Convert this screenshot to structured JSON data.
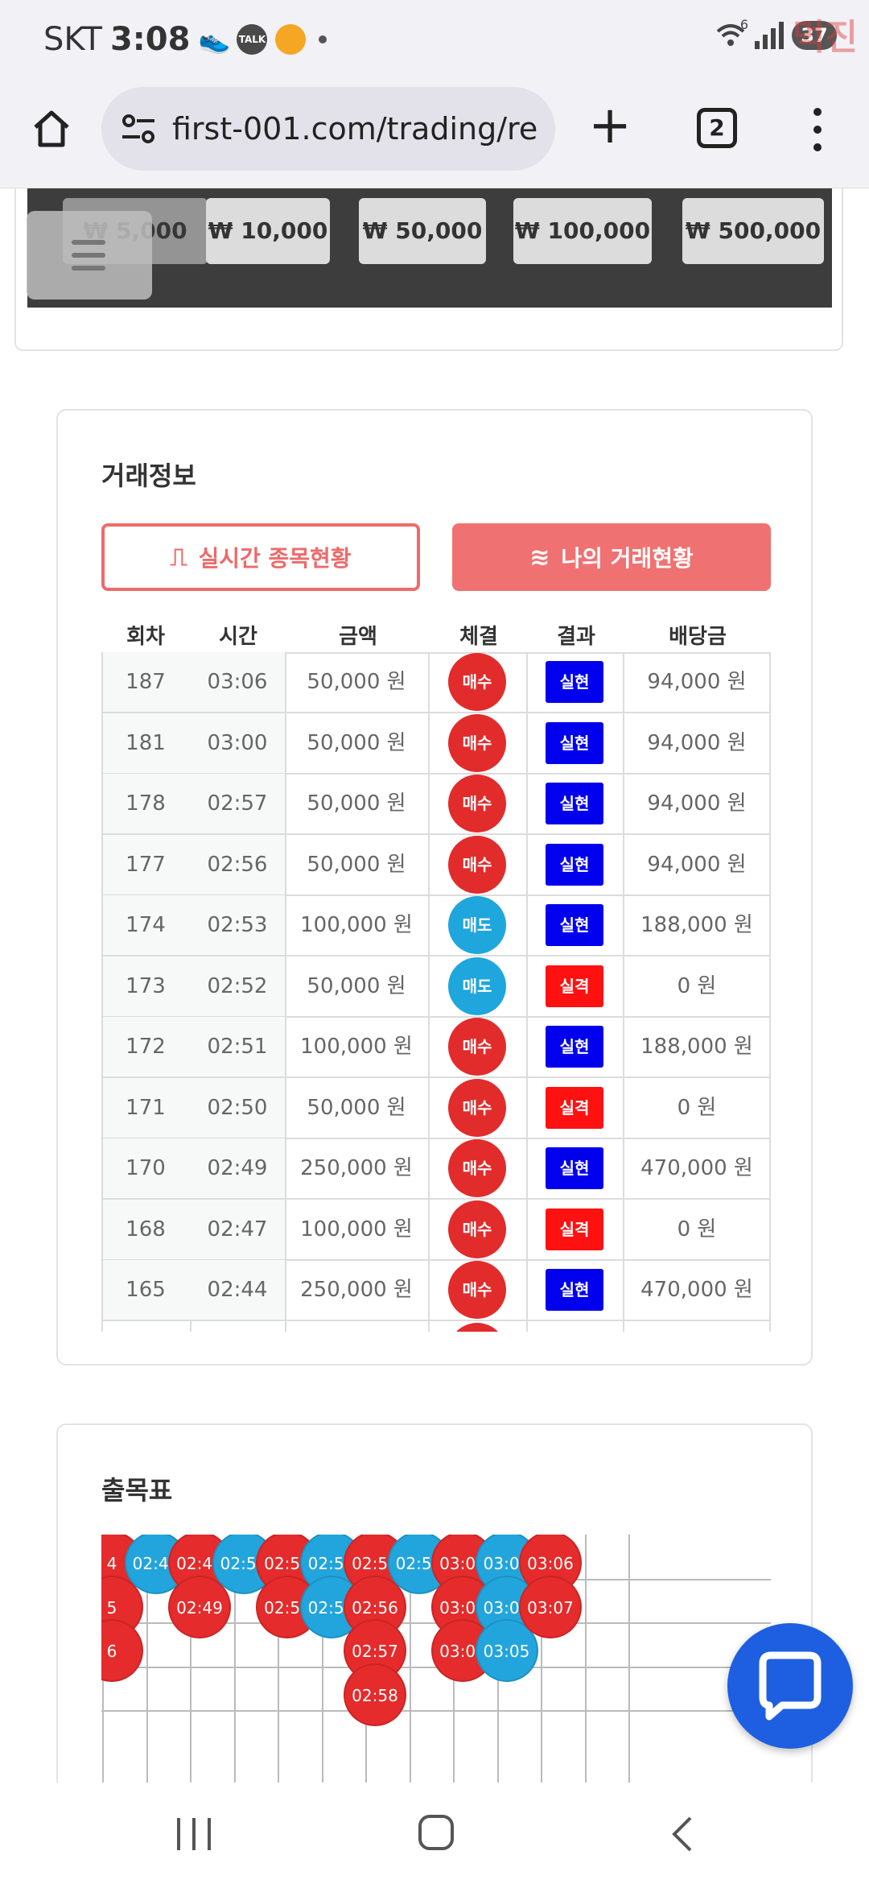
{
  "status_bar": {
    "carrier": "SKT",
    "time": "3:08",
    "talk_label": "TALK",
    "wifi_badge": "6",
    "battery": "37",
    "watermark": "먹진"
  },
  "browser": {
    "url": "first-001.com/trading/re",
    "tab_count": "2"
  },
  "amounts": [
    "₩ 5,000",
    "₩ 10,000",
    "₩ 50,000",
    "₩ 100,000",
    "₩ 500,000"
  ],
  "trade_info": {
    "title": "거래정보",
    "tab_realtime": "실시간 종목현황",
    "tab_mine": "나의 거래현황",
    "columns": [
      "회차",
      "시간",
      "금액",
      "체결",
      "결과",
      "배당금"
    ],
    "rows": [
      {
        "round": "187",
        "time": "03:06",
        "amount": "50,000 원",
        "side": "매수",
        "side_type": "buy",
        "result": "실현",
        "result_type": "win",
        "payout": "94,000 원"
      },
      {
        "round": "181",
        "time": "03:00",
        "amount": "50,000 원",
        "side": "매수",
        "side_type": "buy",
        "result": "실현",
        "result_type": "win",
        "payout": "94,000 원"
      },
      {
        "round": "178",
        "time": "02:57",
        "amount": "50,000 원",
        "side": "매수",
        "side_type": "buy",
        "result": "실현",
        "result_type": "win",
        "payout": "94,000 원"
      },
      {
        "round": "177",
        "time": "02:56",
        "amount": "50,000 원",
        "side": "매수",
        "side_type": "buy",
        "result": "실현",
        "result_type": "win",
        "payout": "94,000 원"
      },
      {
        "round": "174",
        "time": "02:53",
        "amount": "100,000 원",
        "side": "매도",
        "side_type": "sell",
        "result": "실현",
        "result_type": "win",
        "payout": "188,000 원"
      },
      {
        "round": "173",
        "time": "02:52",
        "amount": "50,000 원",
        "side": "매도",
        "side_type": "sell",
        "result": "실격",
        "result_type": "lose",
        "payout": "0 원"
      },
      {
        "round": "172",
        "time": "02:51",
        "amount": "100,000 원",
        "side": "매수",
        "side_type": "buy",
        "result": "실현",
        "result_type": "win",
        "payout": "188,000 원"
      },
      {
        "round": "171",
        "time": "02:50",
        "amount": "50,000 원",
        "side": "매수",
        "side_type": "buy",
        "result": "실격",
        "result_type": "lose",
        "payout": "0 원"
      },
      {
        "round": "170",
        "time": "02:49",
        "amount": "250,000 원",
        "side": "매수",
        "side_type": "buy",
        "result": "실현",
        "result_type": "win",
        "payout": "470,000 원"
      },
      {
        "round": "168",
        "time": "02:47",
        "amount": "100,000 원",
        "side": "매수",
        "side_type": "buy",
        "result": "실격",
        "result_type": "lose",
        "payout": "0 원"
      },
      {
        "round": "165",
        "time": "02:44",
        "amount": "250,000 원",
        "side": "매수",
        "side_type": "buy",
        "result": "실현",
        "result_type": "win",
        "payout": "470,000 원"
      }
    ]
  },
  "result_board": {
    "title": "출목표",
    "columns": [
      {
        "color": "red",
        "times": [
          "4",
          "5",
          "6"
        ]
      },
      {
        "color": "blue",
        "times": [
          "02:47"
        ]
      },
      {
        "color": "red",
        "times": [
          "02:48",
          "02:49"
        ]
      },
      {
        "color": "blue",
        "times": [
          "02:50"
        ]
      },
      {
        "color": "red",
        "times": [
          "02:51",
          "02:52"
        ]
      },
      {
        "color": "blue",
        "times": [
          "02:53",
          "02:54"
        ]
      },
      {
        "color": "red",
        "times": [
          "02:55",
          "02:56",
          "02:57",
          "02:58"
        ]
      },
      {
        "color": "blue",
        "times": [
          "02:59"
        ]
      },
      {
        "color": "red",
        "times": [
          "03:00",
          "03:01",
          "03:02"
        ]
      },
      {
        "color": "blue",
        "times": [
          "03:03",
          "03:04",
          "03:05"
        ]
      },
      {
        "color": "red",
        "times": [
          "03:06",
          "03:07"
        ]
      }
    ]
  },
  "colors": {
    "buy": "#e22b2b",
    "sell": "#1fa6dd",
    "win": "#0000ee",
    "lose": "#ff1111",
    "accent": "#f07171",
    "chat_fab": "#1d5fe0"
  }
}
